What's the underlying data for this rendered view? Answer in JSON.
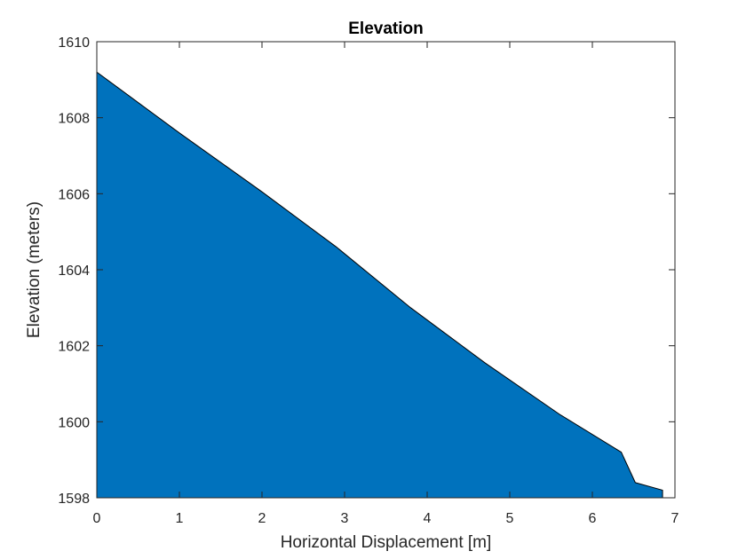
{
  "chart_data": {
    "type": "area",
    "title": "Elevation",
    "xlabel": "Horizontal Displacement [m]",
    "ylabel": "Elevation (meters)",
    "xlim": [
      0,
      7
    ],
    "ylim": [
      1598,
      1610
    ],
    "xticks": [
      0,
      1,
      2,
      3,
      4,
      5,
      6,
      7
    ],
    "yticks": [
      1598,
      1600,
      1602,
      1604,
      1606,
      1608,
      1610
    ],
    "grid": false,
    "legend": "none",
    "baseline": 1598,
    "series": [
      {
        "x": [
          0,
          1,
          2,
          2.9,
          3.8,
          4.7,
          5.6,
          6.35,
          6.52,
          6.85
        ],
        "y": [
          1609.2,
          1607.6,
          1606.05,
          1604.6,
          1603.0,
          1601.55,
          1600.2,
          1599.2,
          1598.4,
          1598.2
        ],
        "color": "#0072BD",
        "edge_color": "#000000"
      }
    ]
  }
}
